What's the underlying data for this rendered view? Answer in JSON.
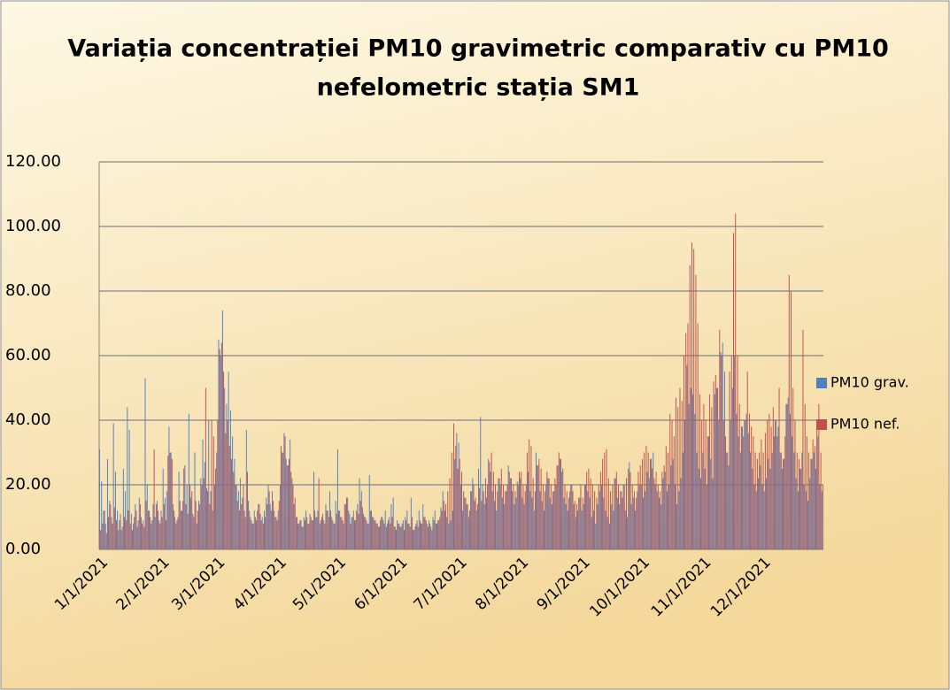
{
  "chart_data": {
    "type": "bar",
    "title": "Variația concentrației PM10 gravimetric comparativ cu PM10 nefelometric stația SM1",
    "categories": [
      "1/1/2021",
      null,
      null,
      null,
      null,
      null,
      null,
      null,
      null,
      null,
      null,
      null,
      null,
      null,
      null,
      null,
      null,
      null,
      null,
      null,
      null,
      null,
      null,
      null,
      null,
      null,
      null,
      null,
      null,
      null,
      null,
      "2/1/2021",
      null,
      null,
      null,
      null,
      null,
      null,
      null,
      null,
      null,
      null,
      null,
      null,
      null,
      null,
      null,
      null,
      null,
      null,
      null,
      null,
      null,
      null,
      null,
      null,
      null,
      null,
      null,
      "3/1/2021",
      null,
      null,
      null,
      null,
      null,
      null,
      null,
      null,
      null,
      null,
      null,
      null,
      null,
      null,
      null,
      null,
      null,
      null,
      null,
      null,
      null,
      null,
      null,
      null,
      null,
      null,
      null,
      null,
      null,
      null,
      "4/1/2021",
      null,
      null,
      null,
      null,
      null,
      null,
      null,
      null,
      null,
      null,
      null,
      null,
      null,
      null,
      null,
      null,
      null,
      null,
      null,
      null,
      null,
      null,
      null,
      null,
      null,
      null,
      null,
      null,
      null,
      "5/1/2021",
      null,
      null,
      null,
      null,
      null,
      null,
      null,
      null,
      null,
      null,
      null,
      null,
      null,
      null,
      null,
      null,
      null,
      null,
      null,
      null,
      null,
      null,
      null,
      null,
      null,
      null,
      null,
      null,
      null,
      null,
      "6/1/2021",
      null,
      null,
      null,
      null,
      null,
      null,
      null,
      null,
      null,
      null,
      null,
      null,
      null,
      null,
      null,
      null,
      null,
      null,
      null,
      null,
      null,
      null,
      null,
      null,
      null,
      null,
      null,
      null,
      null,
      "7/1/2021",
      null,
      null,
      null,
      null,
      null,
      null,
      null,
      null,
      null,
      null,
      null,
      null,
      null,
      null,
      null,
      null,
      null,
      null,
      null,
      null,
      null,
      null,
      null,
      null,
      null,
      null,
      null,
      null,
      null,
      null,
      "8/1/2021",
      null,
      null,
      null,
      null,
      null,
      null,
      null,
      null,
      null,
      null,
      null,
      null,
      null,
      null,
      null,
      null,
      null,
      null,
      null,
      null,
      null,
      null,
      null,
      null,
      null,
      null,
      null,
      null,
      null,
      null,
      "9/1/2021",
      null,
      null,
      null,
      null,
      null,
      null,
      null,
      null,
      null,
      null,
      null,
      null,
      null,
      null,
      null,
      null,
      null,
      null,
      null,
      null,
      null,
      null,
      null,
      null,
      null,
      null,
      null,
      null,
      null,
      "10/1/2021",
      null,
      null,
      null,
      null,
      null,
      null,
      null,
      null,
      null,
      null,
      null,
      null,
      null,
      null,
      null,
      null,
      null,
      null,
      null,
      null,
      null,
      null,
      null,
      null,
      null,
      null,
      null,
      null,
      null,
      null,
      "11/1/2021",
      null,
      null,
      null,
      null,
      null,
      null,
      null,
      null,
      null,
      null,
      null,
      null,
      null,
      null,
      null,
      null,
      null,
      null,
      null,
      null,
      null,
      null,
      null,
      null,
      null,
      null,
      null,
      null,
      null,
      "12/1/2021",
      null,
      null,
      null,
      null,
      null,
      null,
      null,
      null,
      null,
      null,
      null,
      null,
      null,
      null,
      null,
      null,
      null,
      null,
      null,
      null,
      null,
      null,
      null,
      null,
      null,
      null,
      null,
      null,
      null,
      null
    ],
    "series": [
      {
        "name": "PM10 grav.",
        "color": "#4f81bd",
        "values": [
          31,
          21,
          12,
          8,
          28,
          15,
          10,
          39,
          24,
          12,
          9,
          6,
          25,
          18,
          44,
          37,
          11,
          8,
          14,
          7,
          16,
          10,
          9,
          53,
          20,
          12,
          8,
          14,
          10,
          15,
          9,
          12,
          25,
          16,
          18,
          38,
          30,
          14,
          10,
          9,
          24,
          12,
          15,
          26,
          20,
          42,
          16,
          11,
          30,
          8,
          15,
          22,
          34,
          27,
          19,
          40,
          18,
          12,
          20,
          30,
          65,
          60,
          74,
          50,
          45,
          55,
          43,
          35,
          28,
          20,
          18,
          22,
          16,
          12,
          37,
          15,
          10,
          8,
          12,
          9,
          14,
          11,
          10,
          12,
          16,
          20,
          14,
          18,
          12,
          10,
          12,
          20,
          30,
          36,
          28,
          26,
          34,
          22,
          14,
          10,
          8,
          9,
          7,
          10,
          12,
          8,
          11,
          9,
          24,
          10,
          12,
          8,
          10,
          9,
          14,
          12,
          18,
          10,
          8,
          15,
          31,
          12,
          10,
          8,
          14,
          16,
          11,
          10,
          12,
          9,
          14,
          22,
          18,
          11,
          10,
          8,
          23,
          12,
          10,
          9,
          8,
          7,
          10,
          9,
          12,
          8,
          10,
          14,
          16,
          7,
          9,
          8,
          7,
          9,
          10,
          12,
          8,
          16,
          6,
          7,
          9,
          12,
          8,
          14,
          10,
          8,
          9,
          7,
          10,
          12,
          8,
          9,
          13,
          18,
          12,
          10,
          8,
          9,
          12,
          28,
          36,
          33,
          20,
          12,
          16,
          14,
          10,
          18,
          22,
          15,
          12,
          25,
          41,
          20,
          14,
          16,
          28,
          24,
          18,
          15,
          12,
          22,
          20,
          16,
          14,
          18,
          26,
          22,
          18,
          14,
          16,
          20,
          22,
          16,
          14,
          20,
          24,
          18,
          16,
          12,
          30,
          26,
          18,
          15,
          12,
          20,
          22,
          16,
          14,
          18,
          20,
          26,
          28,
          24,
          16,
          14,
          12,
          18,
          20,
          14,
          10,
          12,
          16,
          12,
          14,
          20,
          18,
          16,
          10,
          12,
          8,
          14,
          18,
          20,
          16,
          12,
          10,
          8,
          14,
          12,
          22,
          16,
          14,
          18,
          20,
          12,
          10,
          27,
          14,
          16,
          12,
          18,
          20,
          20,
          16,
          18,
          24,
          22,
          28,
          30,
          20,
          18,
          16,
          14,
          22,
          24,
          18,
          20,
          26,
          28,
          20,
          14,
          18,
          22,
          30,
          40,
          57,
          45,
          50,
          48,
          42,
          30,
          25,
          22,
          30,
          25,
          20,
          35,
          28,
          22,
          48,
          50,
          40,
          61,
          64,
          55,
          30,
          26,
          40,
          50,
          60,
          42,
          35,
          30,
          38,
          40,
          42,
          36,
          30,
          25,
          20,
          18,
          22,
          26,
          20,
          18,
          22,
          28,
          25,
          30,
          35,
          40,
          38,
          30,
          25,
          28,
          45,
          47,
          42,
          35,
          30,
          22,
          18,
          25,
          30,
          20,
          18,
          15,
          22,
          28,
          30,
          25,
          35,
          20,
          18
        ]
      },
      {
        "name": "PM10 nef.",
        "color": "#c0504d",
        "values": [
          6,
          8,
          12,
          5,
          10,
          14,
          8,
          13,
          9,
          6,
          11,
          7,
          10,
          9,
          12,
          8,
          6,
          10,
          12,
          9,
          14,
          8,
          7,
          15,
          12,
          10,
          9,
          31,
          14,
          12,
          8,
          10,
          14,
          9,
          29,
          30,
          28,
          12,
          8,
          10,
          15,
          12,
          25,
          14,
          11,
          20,
          18,
          10,
          15,
          12,
          14,
          20,
          22,
          50,
          18,
          14,
          40,
          35,
          25,
          40,
          62,
          64,
          55,
          36,
          40,
          32,
          28,
          24,
          20,
          15,
          12,
          14,
          20,
          10,
          24,
          12,
          9,
          8,
          10,
          12,
          14,
          9,
          8,
          10,
          14,
          18,
          12,
          15,
          10,
          9,
          15,
          32,
          30,
          35,
          26,
          28,
          24,
          20,
          16,
          10,
          8,
          9,
          7,
          9,
          10,
          8,
          10,
          9,
          12,
          10,
          22,
          9,
          11,
          8,
          12,
          10,
          12,
          9,
          8,
          11,
          12,
          10,
          9,
          14,
          16,
          12,
          8,
          10,
          9,
          12,
          11,
          15,
          13,
          10,
          9,
          8,
          12,
          10,
          9,
          8,
          7,
          9,
          10,
          8,
          7,
          9,
          8,
          10,
          7,
          6,
          8,
          7,
          8,
          6,
          9,
          8,
          7,
          10,
          6,
          8,
          7,
          9,
          8,
          10,
          9,
          7,
          8,
          6,
          9,
          8,
          9,
          10,
          12,
          15,
          14,
          18,
          22,
          30,
          39,
          32,
          25,
          28,
          24,
          18,
          16,
          14,
          12,
          18,
          20,
          16,
          14,
          19,
          15,
          18,
          22,
          20,
          27,
          30,
          24,
          20,
          18,
          22,
          25,
          20,
          18,
          20,
          24,
          22,
          20,
          18,
          21,
          24,
          24,
          20,
          18,
          30,
          34,
          32,
          22,
          18,
          26,
          28,
          25,
          20,
          18,
          24,
          22,
          20,
          18,
          22,
          26,
          30,
          28,
          25,
          20,
          18,
          16,
          20,
          18,
          15,
          14,
          16,
          20,
          16,
          20,
          24,
          25,
          22,
          20,
          18,
          16,
          20,
          24,
          28,
          30,
          31,
          22,
          18,
          20,
          22,
          24,
          20,
          18,
          16,
          20,
          22,
          25,
          24,
          20,
          18,
          16,
          24,
          26,
          28,
          30,
          32,
          30,
          28,
          25,
          22,
          24,
          20,
          18,
          24,
          26,
          32,
          30,
          42,
          40,
          35,
          47,
          44,
          50,
          46,
          60,
          67,
          70,
          88,
          95,
          93,
          85,
          70,
          48,
          40,
          45,
          40,
          35,
          48,
          44,
          52,
          54,
          50,
          68,
          60,
          40,
          35,
          30,
          55,
          60,
          98,
          104,
          60,
          45,
          38,
          35,
          40,
          55,
          42,
          38,
          35,
          30,
          28,
          30,
          34,
          30,
          36,
          40,
          42,
          38,
          44,
          40,
          35,
          50,
          30,
          28,
          35,
          45,
          85,
          80,
          50,
          40,
          30,
          28,
          25,
          68,
          45,
          35,
          30,
          28,
          34,
          32,
          40,
          45,
          30,
          20
        ]
      }
    ],
    "ylim": [
      0,
      120
    ],
    "yticks": [
      {
        "value": 0,
        "label": "0.00"
      },
      {
        "value": 20,
        "label": "20.00"
      },
      {
        "value": 40,
        "label": "40.00"
      },
      {
        "value": 60,
        "label": "60.00"
      },
      {
        "value": 80,
        "label": "80.00"
      },
      {
        "value": 100,
        "label": "100.00"
      },
      {
        "value": 120,
        "label": "120.00"
      }
    ],
    "grid": true,
    "legend": "right"
  }
}
